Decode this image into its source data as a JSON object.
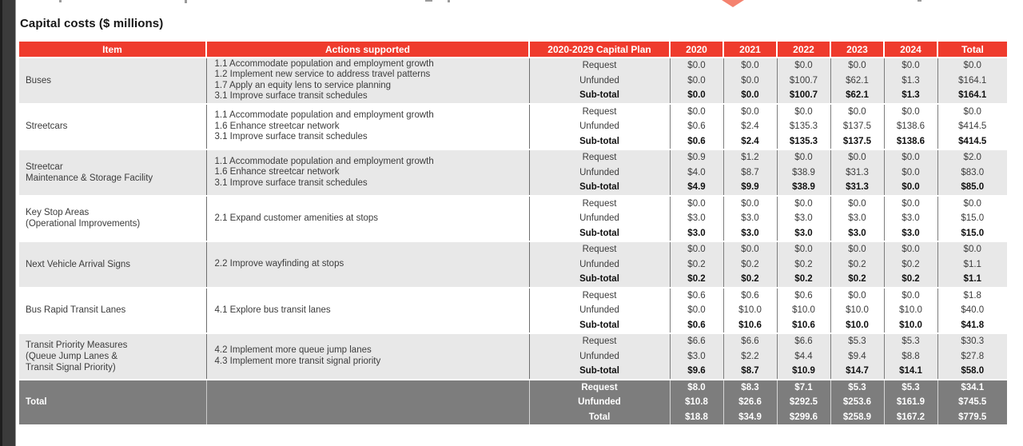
{
  "title": "Capital costs ($ millions)",
  "colors": {
    "header_red": "#ef3b2d",
    "band_gray": "#e8e8e8",
    "band_white": "#ffffff",
    "total_band_gray": "#7d7d7d",
    "diamond_salmon": "#f4826f"
  },
  "decorations": {
    "diamond": "red-diamond-tip"
  },
  "table": {
    "type": "table",
    "headers": [
      "Item",
      "Actions supported",
      "2020-2029 Capital Plan",
      "2020",
      "2021",
      "2022",
      "2023",
      "2024",
      "Total"
    ],
    "groups": [
      {
        "item_lines": [
          "Buses"
        ],
        "actions": [
          "1.1 Accommodate population and employment growth",
          "1.2 Implement new service to address travel patterns",
          "1.7 Apply an equity lens to service planning",
          "3.1 Improve surface transit schedules"
        ],
        "shade": "gray",
        "rows": [
          {
            "label": "Request",
            "emphasis": false,
            "values": [
              "$0.0",
              "$0.0",
              "$0.0",
              "$0.0",
              "$0.0",
              "$0.0"
            ]
          },
          {
            "label": "Unfunded",
            "emphasis": false,
            "values": [
              "$0.0",
              "$0.0",
              "$100.7",
              "$62.1",
              "$1.3",
              "$164.1"
            ]
          },
          {
            "label": "Sub-total",
            "emphasis": true,
            "values": [
              "$0.0",
              "$0.0",
              "$100.7",
              "$62.1",
              "$1.3",
              "$164.1"
            ]
          }
        ]
      },
      {
        "item_lines": [
          "Streetcars"
        ],
        "actions": [
          "1.1 Accommodate population and employment growth",
          "1.6 Enhance streetcar network",
          "3.1 Improve surface transit schedules"
        ],
        "shade": "white",
        "rows": [
          {
            "label": "Request",
            "emphasis": false,
            "values": [
              "$0.0",
              "$0.0",
              "$0.0",
              "$0.0",
              "$0.0",
              "$0.0"
            ]
          },
          {
            "label": "Unfunded",
            "emphasis": false,
            "values": [
              "$0.6",
              "$2.4",
              "$135.3",
              "$137.5",
              "$138.6",
              "$414.5"
            ]
          },
          {
            "label": "Sub-total",
            "emphasis": true,
            "values": [
              "$0.6",
              "$2.4",
              "$135.3",
              "$137.5",
              "$138.6",
              "$414.5"
            ]
          }
        ]
      },
      {
        "item_lines": [
          "Streetcar",
          "Maintenance & Storage Facility"
        ],
        "actions": [
          "1.1 Accommodate population and employment growth",
          "1.6 Enhance streetcar network",
          "3.1 Improve surface transit schedules"
        ],
        "shade": "gray",
        "rows": [
          {
            "label": "Request",
            "emphasis": false,
            "values": [
              "$0.9",
              "$1.2",
              "$0.0",
              "$0.0",
              "$0.0",
              "$2.0"
            ]
          },
          {
            "label": "Unfunded",
            "emphasis": false,
            "values": [
              "$4.0",
              "$8.7",
              "$38.9",
              "$31.3",
              "$0.0",
              "$83.0"
            ]
          },
          {
            "label": "Sub-total",
            "emphasis": true,
            "values": [
              "$4.9",
              "$9.9",
              "$38.9",
              "$31.3",
              "$0.0",
              "$85.0"
            ]
          }
        ]
      },
      {
        "item_lines": [
          "Key Stop Areas",
          "(Operational Improvements)"
        ],
        "actions": [
          "2.1 Expand customer amenities at stops"
        ],
        "shade": "white",
        "rows": [
          {
            "label": "Request",
            "emphasis": false,
            "values": [
              "$0.0",
              "$0.0",
              "$0.0",
              "$0.0",
              "$0.0",
              "$0.0"
            ]
          },
          {
            "label": "Unfunded",
            "emphasis": false,
            "values": [
              "$3.0",
              "$3.0",
              "$3.0",
              "$3.0",
              "$3.0",
              "$15.0"
            ]
          },
          {
            "label": "Sub-total",
            "emphasis": true,
            "values": [
              "$3.0",
              "$3.0",
              "$3.0",
              "$3.0",
              "$3.0",
              "$15.0"
            ]
          }
        ]
      },
      {
        "item_lines": [
          "Next Vehicle Arrival Signs"
        ],
        "actions": [
          "2.2 Improve wayfinding at stops"
        ],
        "shade": "gray",
        "rows": [
          {
            "label": "Request",
            "emphasis": false,
            "values": [
              "$0.0",
              "$0.0",
              "$0.0",
              "$0.0",
              "$0.0",
              "$0.0"
            ]
          },
          {
            "label": "Unfunded",
            "emphasis": false,
            "values": [
              "$0.2",
              "$0.2",
              "$0.2",
              "$0.2",
              "$0.2",
              "$1.1"
            ]
          },
          {
            "label": "Sub-total",
            "emphasis": true,
            "values": [
              "$0.2",
              "$0.2",
              "$0.2",
              "$0.2",
              "$0.2",
              "$1.1"
            ]
          }
        ]
      },
      {
        "item_lines": [
          "Bus Rapid Transit Lanes"
        ],
        "actions": [
          "4.1 Explore bus transit lanes"
        ],
        "shade": "white",
        "rows": [
          {
            "label": "Request",
            "emphasis": false,
            "values": [
              "$0.6",
              "$0.6",
              "$0.6",
              "$0.0",
              "$0.0",
              "$1.8"
            ]
          },
          {
            "label": "Unfunded",
            "emphasis": false,
            "values": [
              "$0.0",
              "$10.0",
              "$10.0",
              "$10.0",
              "$10.0",
              "$40.0"
            ]
          },
          {
            "label": "Sub-total",
            "emphasis": true,
            "values": [
              "$0.6",
              "$10.6",
              "$10.6",
              "$10.0",
              "$10.0",
              "$41.8"
            ]
          }
        ]
      },
      {
        "item_lines": [
          "Transit Priority Measures",
          "(Queue Jump Lanes &",
          "Transit Signal Priority)"
        ],
        "actions": [
          "4.2 Implement more queue jump lanes",
          "4.3 Implement more transit signal priority"
        ],
        "shade": "gray",
        "rows": [
          {
            "label": "Request",
            "emphasis": false,
            "values": [
              "$6.6",
              "$6.6",
              "$6.6",
              "$5.3",
              "$5.3",
              "$30.3"
            ]
          },
          {
            "label": "Unfunded",
            "emphasis": false,
            "values": [
              "$3.0",
              "$2.2",
              "$4.4",
              "$9.4",
              "$8.8",
              "$27.8"
            ]
          },
          {
            "label": "Sub-total",
            "emphasis": true,
            "values": [
              "$9.6",
              "$8.7",
              "$10.9",
              "$14.7",
              "$14.1",
              "$58.0"
            ]
          }
        ]
      },
      {
        "item_lines": [
          "Total"
        ],
        "actions": [],
        "shade": "dark",
        "rows": [
          {
            "label": "Request",
            "emphasis": true,
            "values": [
              "$8.0",
              "$8.3",
              "$7.1",
              "$5.3",
              "$5.3",
              "$34.1"
            ]
          },
          {
            "label": "Unfunded",
            "emphasis": true,
            "values": [
              "$10.8",
              "$26.6",
              "$292.5",
              "$253.6",
              "$161.9",
              "$745.5"
            ]
          },
          {
            "label": "Total",
            "emphasis": true,
            "values": [
              "$18.8",
              "$34.9",
              "$299.6",
              "$258.9",
              "$167.2",
              "$779.5"
            ]
          }
        ]
      }
    ]
  }
}
